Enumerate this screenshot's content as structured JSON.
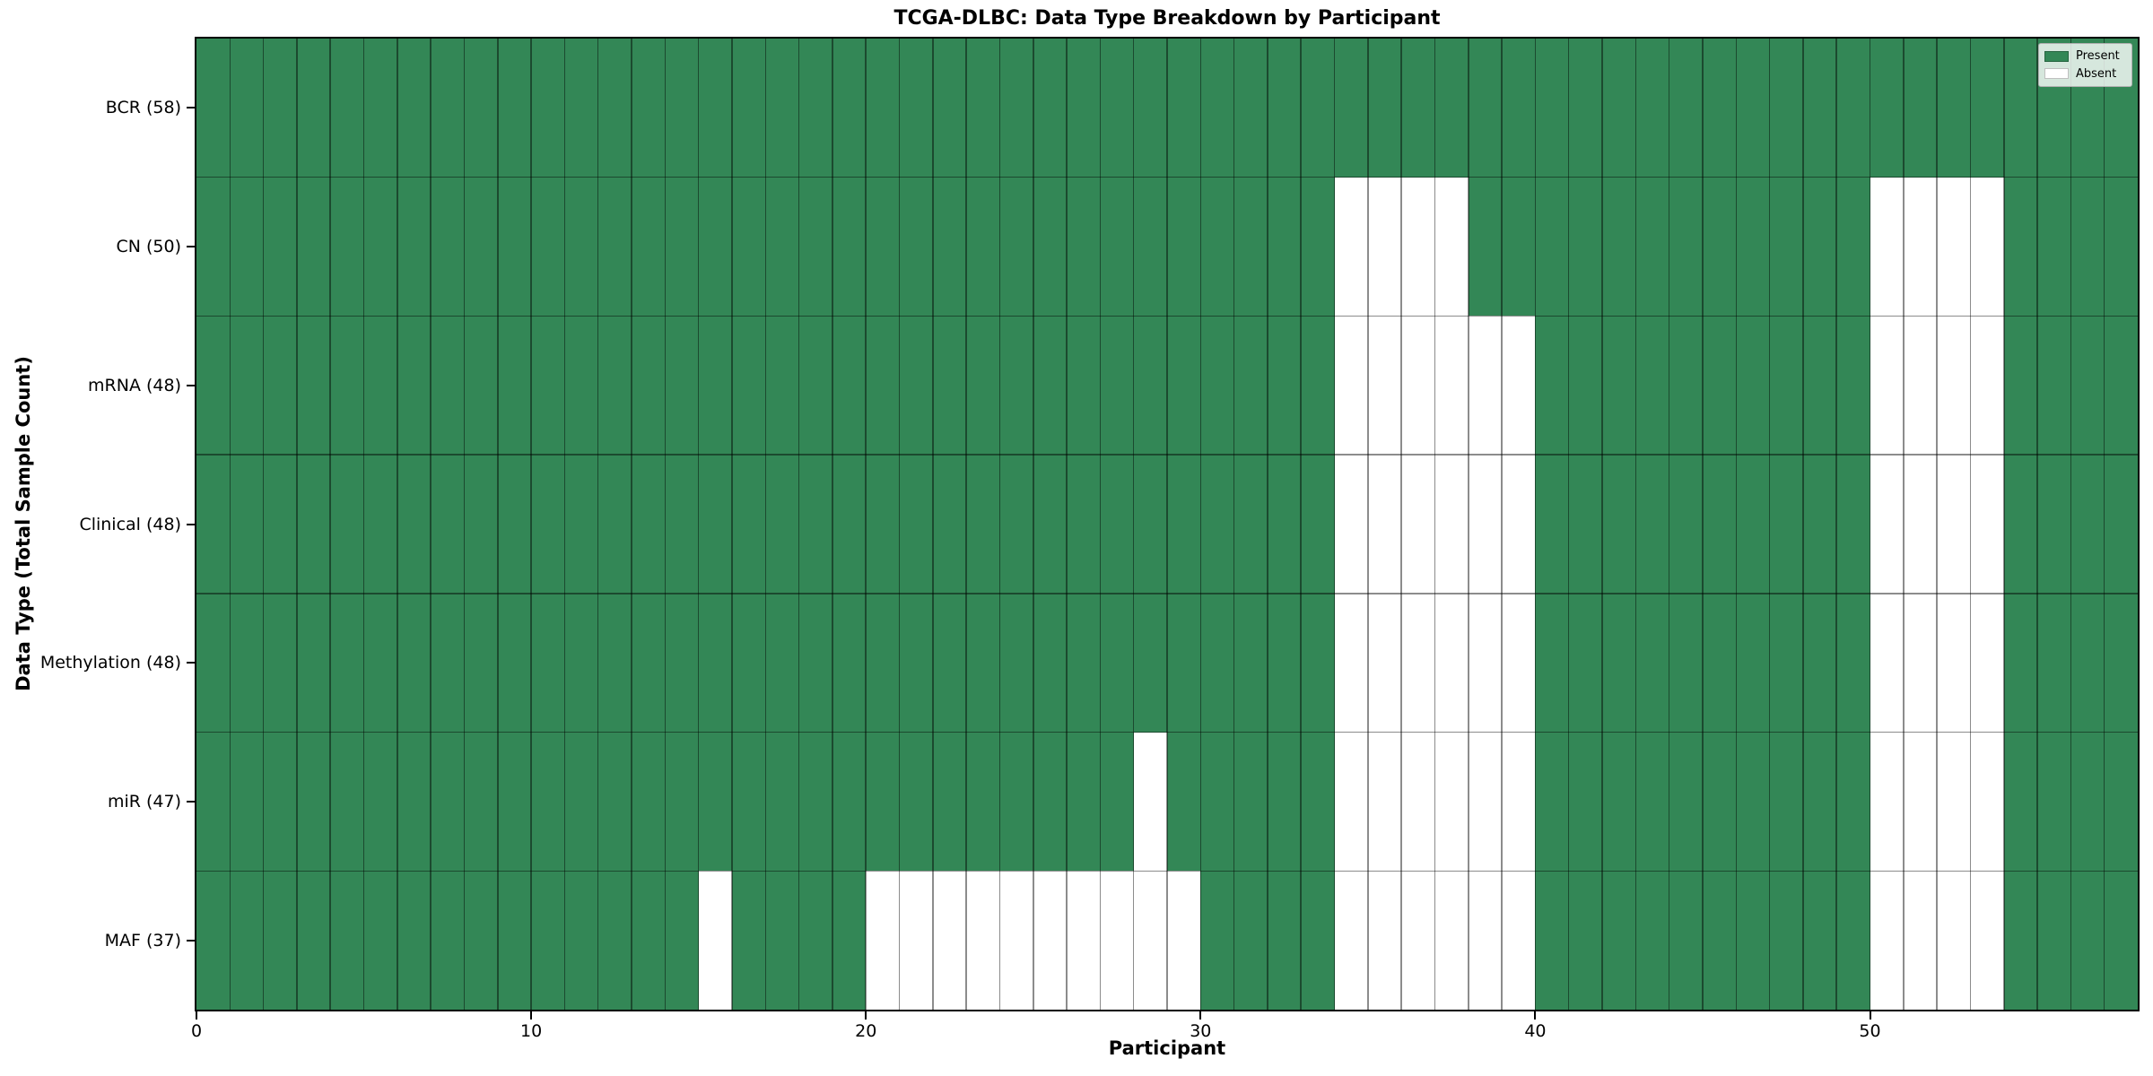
{
  "colors": {
    "present": "#338756",
    "absent": "#ffffff",
    "grid_line": "rgba(0,0,0,0.45)",
    "spine": "#000000",
    "tick": "#000000",
    "text": "#000000",
    "legend_background": "rgba(255,255,255,0.8)",
    "legend_border": "#b0b0b0"
  },
  "chart_data": {
    "type": "heatmap",
    "title": "TCGA-DLBC: Data Type Breakdown by Participant",
    "xlabel": "Participant",
    "ylabel": "Data Type (Total Sample Count)",
    "n_participants": 58,
    "x_range": [
      0,
      58
    ],
    "x_ticks": [
      0,
      10,
      20,
      30,
      40,
      50
    ],
    "grid": true,
    "legend_position": "upper right",
    "legend": [
      {
        "label": "Present",
        "color": "#338756"
      },
      {
        "label": "Absent",
        "color": "#ffffff"
      }
    ],
    "rows": [
      {
        "label": "BCR (58)",
        "data_type": "BCR",
        "total_samples": 58,
        "absent_participants": []
      },
      {
        "label": "CN (50)",
        "data_type": "CN",
        "total_samples": 50,
        "absent_participants": [
          34,
          35,
          36,
          37,
          50,
          51,
          52,
          53
        ]
      },
      {
        "label": "mRNA (48)",
        "data_type": "mRNA",
        "total_samples": 48,
        "absent_participants": [
          34,
          35,
          36,
          37,
          38,
          39,
          50,
          51,
          52,
          53
        ]
      },
      {
        "label": "Clinical (48)",
        "data_type": "Clinical",
        "total_samples": 48,
        "absent_participants": [
          34,
          35,
          36,
          37,
          38,
          39,
          50,
          51,
          52,
          53
        ]
      },
      {
        "label": "Methylation (48)",
        "data_type": "Methylation",
        "total_samples": 48,
        "absent_participants": [
          34,
          35,
          36,
          37,
          38,
          39,
          50,
          51,
          52,
          53
        ]
      },
      {
        "label": "miR (47)",
        "data_type": "miR",
        "total_samples": 47,
        "absent_participants": [
          28,
          34,
          35,
          36,
          37,
          38,
          39,
          50,
          51,
          52,
          53
        ]
      },
      {
        "label": "MAF (37)",
        "data_type": "MAF",
        "total_samples": 37,
        "absent_participants": [
          15,
          20,
          21,
          22,
          23,
          24,
          25,
          26,
          27,
          28,
          29,
          34,
          35,
          36,
          37,
          38,
          39,
          50,
          51,
          52,
          53
        ]
      }
    ]
  }
}
